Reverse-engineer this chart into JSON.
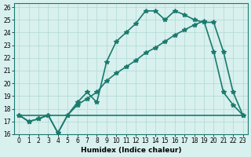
{
  "xlabel": "Humidex (Indice chaleur)",
  "ylabel": "",
  "line_color": "#1a7a6e",
  "bg_color": "#d8f0ee",
  "grid_color": "#b0d8d4",
  "xlim": [
    0,
    23
  ],
  "ylim": [
    16,
    26
  ],
  "xticks": [
    0,
    1,
    2,
    3,
    4,
    5,
    6,
    7,
    8,
    9,
    10,
    11,
    12,
    13,
    14,
    15,
    16,
    17,
    18,
    19,
    20,
    21,
    22,
    23
  ],
  "yticks": [
    16,
    17,
    18,
    19,
    20,
    21,
    22,
    23,
    24,
    25,
    26
  ],
  "series1_x": [
    0,
    1,
    2,
    3,
    4,
    5,
    6,
    7,
    8,
    9,
    10,
    11,
    12,
    13,
    14,
    15,
    16,
    17,
    18,
    19,
    20,
    21,
    22,
    23
  ],
  "series1_y": [
    17.5,
    17.0,
    17.2,
    17.5,
    16.1,
    17.5,
    18.5,
    19.3,
    18.5,
    21.7,
    23.3,
    24.0,
    24.7,
    25.7,
    25.7,
    25.0,
    25.7,
    25.4,
    25.0,
    24.8,
    24.8,
    22.5,
    19.3,
    17.5
  ],
  "series2_x": [
    0,
    1,
    2,
    3,
    4,
    5,
    6,
    7,
    8,
    9,
    10,
    11,
    12,
    13,
    14,
    15,
    16,
    17,
    18,
    19,
    20,
    21,
    22,
    23
  ],
  "series2_y": [
    17.5,
    17.0,
    17.2,
    17.5,
    16.1,
    17.5,
    18.3,
    18.8,
    19.3,
    20.2,
    20.8,
    21.3,
    21.8,
    22.4,
    22.8,
    23.3,
    23.8,
    24.2,
    24.6,
    24.9,
    22.5,
    19.3,
    18.3,
    17.5
  ],
  "series3_x": [
    0,
    23
  ],
  "series3_y": [
    17.5,
    17.5
  ],
  "marker": "*",
  "marker_size": 4,
  "line_width": 1.2
}
